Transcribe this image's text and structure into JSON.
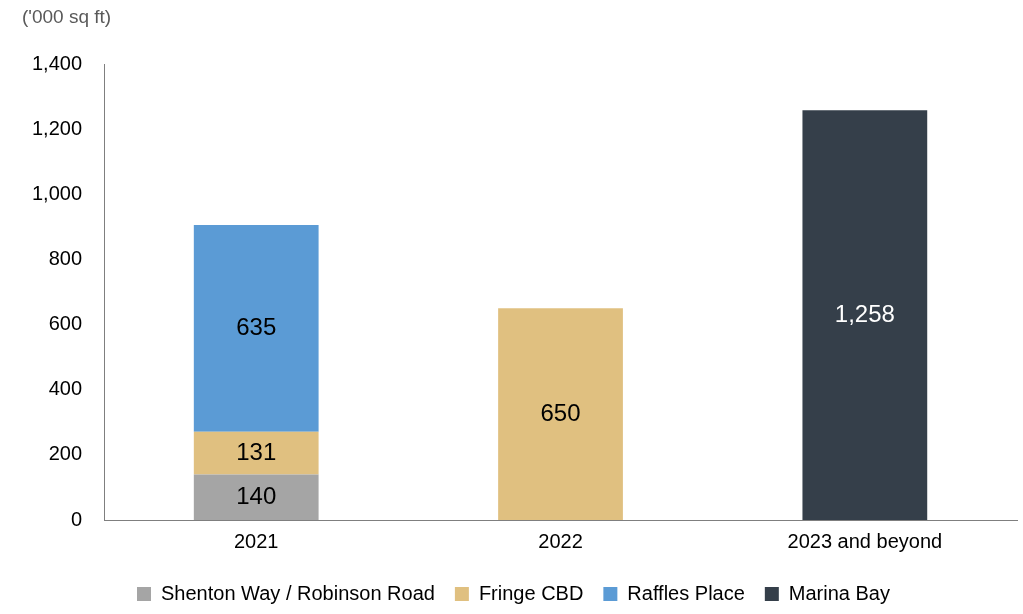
{
  "chart_data": {
    "type": "bar",
    "stacked": true,
    "ylabel": "('000 sq ft)",
    "categories": [
      "2021",
      "2022",
      "2023 and beyond"
    ],
    "series": [
      {
        "name": "Shenton Way / Robinson Road",
        "color": "#a5a5a5",
        "values": [
          140,
          null,
          null
        ],
        "value_labels": [
          "140",
          null,
          null
        ]
      },
      {
        "name": "Fringe CBD",
        "color": "#e0c080",
        "values": [
          131,
          650,
          null
        ],
        "value_labels": [
          "131",
          "650",
          null
        ]
      },
      {
        "name": "Raffles Place",
        "color": "#5b9bd5",
        "values": [
          635,
          null,
          null
        ],
        "value_labels": [
          "635",
          null,
          null
        ]
      },
      {
        "name": "Marina Bay",
        "color": "#353f4a",
        "values": [
          null,
          null,
          1258
        ],
        "value_labels": [
          null,
          null,
          "1,258"
        ]
      }
    ],
    "ylim": [
      0,
      1400
    ],
    "yticks": [
      0,
      200,
      400,
      600,
      800,
      {
        "value": 1000,
        "label": "1,000"
      },
      {
        "value": 1200,
        "label": "1,200"
      },
      {
        "value": 1400,
        "label": "1,400"
      }
    ],
    "grid": false,
    "legend": "bottom"
  }
}
